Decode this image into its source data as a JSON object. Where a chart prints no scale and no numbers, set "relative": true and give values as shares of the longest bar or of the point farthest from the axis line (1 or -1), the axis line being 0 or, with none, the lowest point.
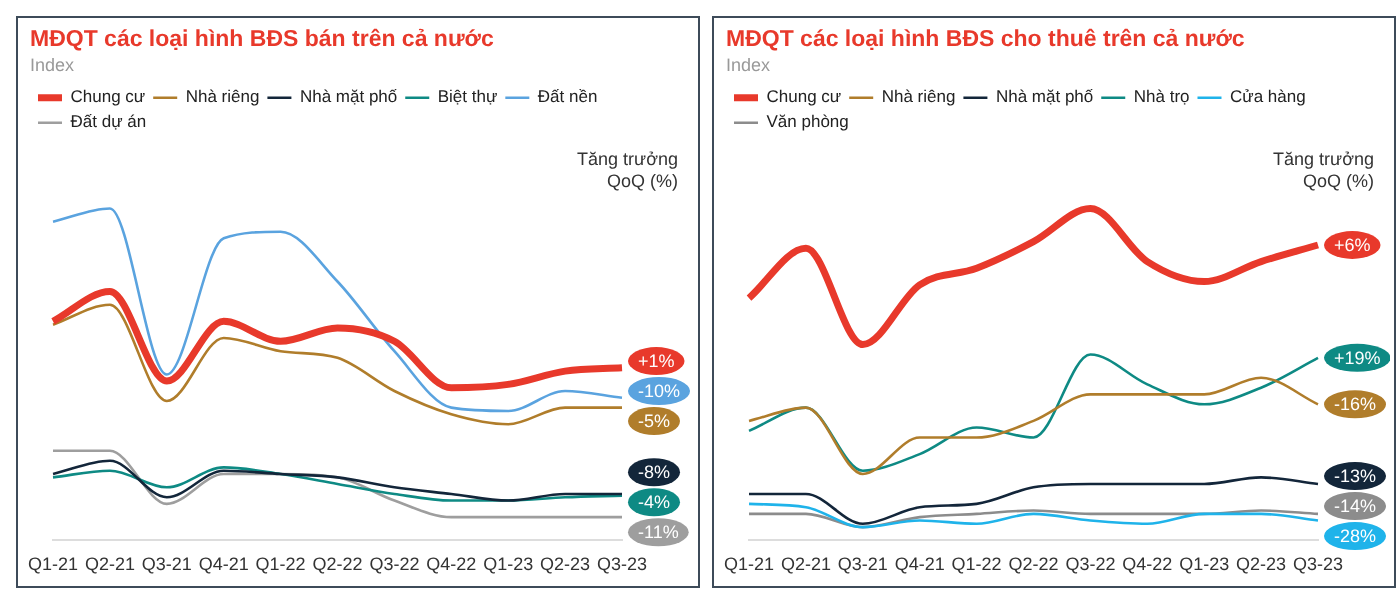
{
  "chart_data": [
    {
      "type": "line",
      "title": "MĐQT các loại hình BĐS bán trên cả nước",
      "subtitle": "Index",
      "relative": true,
      "legend": "top",
      "grid": false,
      "annotations": [
        "Tăng trưởng\nQoQ (%)",
        {
          "text": "+1%",
          "x": "Q3-23",
          "y": 0.52
        },
        {
          "text": "-5%",
          "x": "Q3-23",
          "y": 0.4
        },
        {
          "text": "-8%",
          "x": "Q3-23",
          "y": 0.14
        },
        {
          "text": "-4%",
          "x": "Q3-23",
          "y": 0.135
        },
        {
          "text": "-10%",
          "x": "Q3-23",
          "y": 0.43
        },
        {
          "text": "-11%",
          "x": "Q3-23",
          "y": 0.07
        }
      ],
      "categories": [
        "Q1-21",
        "Q2-21",
        "Q3-21",
        "Q4-21",
        "Q1-22",
        "Q2-22",
        "Q3-22",
        "Q4-22",
        "Q1-23",
        "Q2-23",
        "Q3-23"
      ],
      "series": [
        {
          "name": "Chung cư",
          "color": "#e8392b",
          "values": [
            0.66,
            0.75,
            0.48,
            0.66,
            0.6,
            0.64,
            0.6,
            0.46,
            0.47,
            0.51,
            0.52
          ]
        },
        {
          "name": "Nhà riêng",
          "color": "#b07d2b",
          "values": [
            0.65,
            0.71,
            0.42,
            0.61,
            0.57,
            0.55,
            0.45,
            0.38,
            0.35,
            0.4,
            0.4
          ]
        },
        {
          "name": "Nhà mặt phố",
          "color": "#13263a",
          "values": [
            0.2,
            0.24,
            0.13,
            0.21,
            0.2,
            0.19,
            0.16,
            0.14,
            0.12,
            0.14,
            0.14
          ]
        },
        {
          "name": "Biệt thự",
          "color": "#0e8a84",
          "values": [
            0.19,
            0.21,
            0.16,
            0.22,
            0.2,
            0.17,
            0.14,
            0.12,
            0.12,
            0.13,
            0.135
          ]
        },
        {
          "name": "Đất nền",
          "color": "#5aa3df",
          "values": [
            0.96,
            1.0,
            0.5,
            0.91,
            0.93,
            0.78,
            0.57,
            0.4,
            0.39,
            0.45,
            0.43
          ]
        },
        {
          "name": "Đất dự án",
          "color": "#9e9e9e",
          "values": [
            0.27,
            0.27,
            0.11,
            0.2,
            0.2,
            0.19,
            0.12,
            0.07,
            0.07,
            0.07,
            0.07
          ]
        }
      ]
    },
    {
      "type": "line",
      "title": "MĐQT các loại hình BĐS cho thuê trên cả nước",
      "subtitle": "Index",
      "relative": true,
      "legend": "top",
      "grid": false,
      "annotations": [
        "Tăng trưởng\nQoQ (%)",
        {
          "text": "+6%",
          "x": "Q3-23",
          "y": 0.89
        },
        {
          "text": "-16%",
          "x": "Q3-23",
          "y": 0.41
        },
        {
          "text": "-13%",
          "x": "Q3-23",
          "y": 0.17
        },
        {
          "text": "+19%",
          "x": "Q3-23",
          "y": 0.55
        },
        {
          "text": "-28%",
          "x": "Q3-23",
          "y": 0.06
        },
        {
          "text": "-14%",
          "x": "Q3-23",
          "y": 0.08
        }
      ],
      "categories": [
        "Q1-21",
        "Q2-21",
        "Q3-21",
        "Q4-21",
        "Q1-22",
        "Q2-22",
        "Q3-22",
        "Q4-22",
        "Q1-23",
        "Q2-23",
        "Q3-23"
      ],
      "series": [
        {
          "name": "Chung cư",
          "color": "#e8392b",
          "values": [
            0.73,
            0.88,
            0.59,
            0.77,
            0.82,
            0.9,
            1.0,
            0.84,
            0.78,
            0.84,
            0.89
          ]
        },
        {
          "name": "Nhà riêng",
          "color": "#b07d2b",
          "values": [
            0.36,
            0.4,
            0.2,
            0.31,
            0.31,
            0.36,
            0.44,
            0.44,
            0.44,
            0.49,
            0.41
          ]
        },
        {
          "name": "Nhà mặt phố",
          "color": "#13263a",
          "values": [
            0.14,
            0.14,
            0.05,
            0.1,
            0.11,
            0.16,
            0.17,
            0.17,
            0.17,
            0.19,
            0.17
          ]
        },
        {
          "name": "Nhà trọ",
          "color": "#0e8a84",
          "values": [
            0.33,
            0.4,
            0.21,
            0.26,
            0.34,
            0.31,
            0.56,
            0.47,
            0.41,
            0.46,
            0.55
          ]
        },
        {
          "name": "Cửa hàng",
          "color": "#1fb3ea",
          "values": [
            0.11,
            0.1,
            0.04,
            0.06,
            0.05,
            0.08,
            0.06,
            0.05,
            0.08,
            0.08,
            0.06
          ]
        },
        {
          "name": "Văn phòng",
          "color": "#8c8c8c",
          "values": [
            0.08,
            0.08,
            0.04,
            0.07,
            0.08,
            0.09,
            0.08,
            0.08,
            0.08,
            0.09,
            0.08
          ]
        }
      ]
    }
  ]
}
